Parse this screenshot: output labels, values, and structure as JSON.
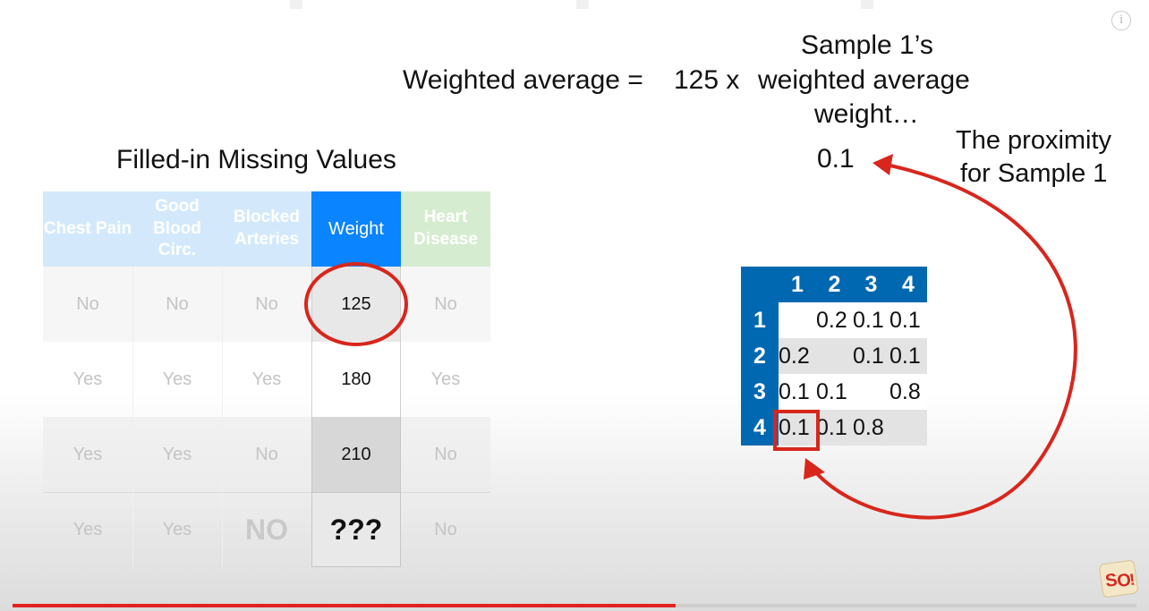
{
  "formula": {
    "line1": "Sample 1’s",
    "lhs": "Weighted average =",
    "multiplier": "125 x",
    "line2_rest": "weighted average",
    "line3": "weight…",
    "value": "0.1"
  },
  "proximity_note": {
    "line1": "The proximity",
    "line2": "for Sample 1"
  },
  "left_table": {
    "title": "Filled-in Missing Values",
    "headers": [
      "Chest Pain",
      "Good Blood Circ.",
      "Blocked Arteries",
      "Weight",
      "Heart Disease"
    ],
    "rows": [
      [
        "No",
        "No",
        "No",
        "125",
        "No"
      ],
      [
        "Yes",
        "Yes",
        "Yes",
        "180",
        "Yes"
      ],
      [
        "Yes",
        "Yes",
        "No",
        "210",
        "No"
      ],
      [
        "Yes",
        "Yes",
        "NO",
        "???",
        "No"
      ]
    ]
  },
  "proximity_matrix": {
    "col_headers": [
      "1",
      "2",
      "3",
      "4"
    ],
    "row_headers": [
      "1",
      "2",
      "3",
      "4"
    ],
    "cells": [
      [
        "",
        "0.2",
        "0.1",
        "0.1"
      ],
      [
        "0.2",
        "",
        "0.1",
        "0.1"
      ],
      [
        "0.1",
        "0.1",
        "",
        "0.8"
      ],
      [
        "0.1",
        "0.1",
        "0.8",
        ""
      ]
    ],
    "highlighted_cell": {
      "row": 4,
      "col": 1
    }
  },
  "colors": {
    "weight_header": "#0a84ff",
    "chest_header": "#d3e9fb",
    "heart_header": "#d6ecd0",
    "matrix_header": "#0068b0",
    "annotation_red": "#d8261c",
    "progress_red": "#e32222"
  },
  "player": {
    "progress": 0.59,
    "info_icon": "info-icon",
    "channel_logo": "statquest-logo"
  }
}
